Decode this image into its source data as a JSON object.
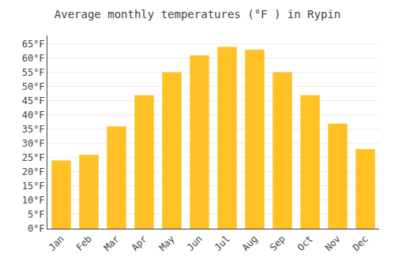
{
  "chart_data": {
    "type": "bar",
    "title": "Average monthly temperatures (°F ) in Rypin",
    "categories": [
      "Jan",
      "Feb",
      "Mar",
      "Apr",
      "May",
      "Jun",
      "Jul",
      "Aug",
      "Sep",
      "Oct",
      "Nov",
      "Dec"
    ],
    "values": [
      24,
      26,
      36,
      47,
      55,
      61,
      64,
      63,
      55,
      47,
      37,
      28
    ],
    "color": "#FFC125",
    "ylim": [
      0,
      68
    ],
    "yticks": [
      {
        "value": 0,
        "label": "0°F"
      },
      {
        "value": 5,
        "label": "5°F"
      },
      {
        "value": 10,
        "label": "10°F"
      },
      {
        "value": 15,
        "label": "15°F"
      },
      {
        "value": 20,
        "label": "20°F"
      },
      {
        "value": 25,
        "label": "25°F"
      },
      {
        "value": 30,
        "label": "30°F"
      },
      {
        "value": 35,
        "label": "35°F"
      },
      {
        "value": 40,
        "label": "40°F"
      },
      {
        "value": 45,
        "label": "45°F"
      },
      {
        "value": 50,
        "label": "50°F"
      },
      {
        "value": 55,
        "label": "55°F"
      },
      {
        "value": 60,
        "label": "60°F"
      },
      {
        "value": 65,
        "label": "65°F"
      }
    ],
    "grid": true
  }
}
